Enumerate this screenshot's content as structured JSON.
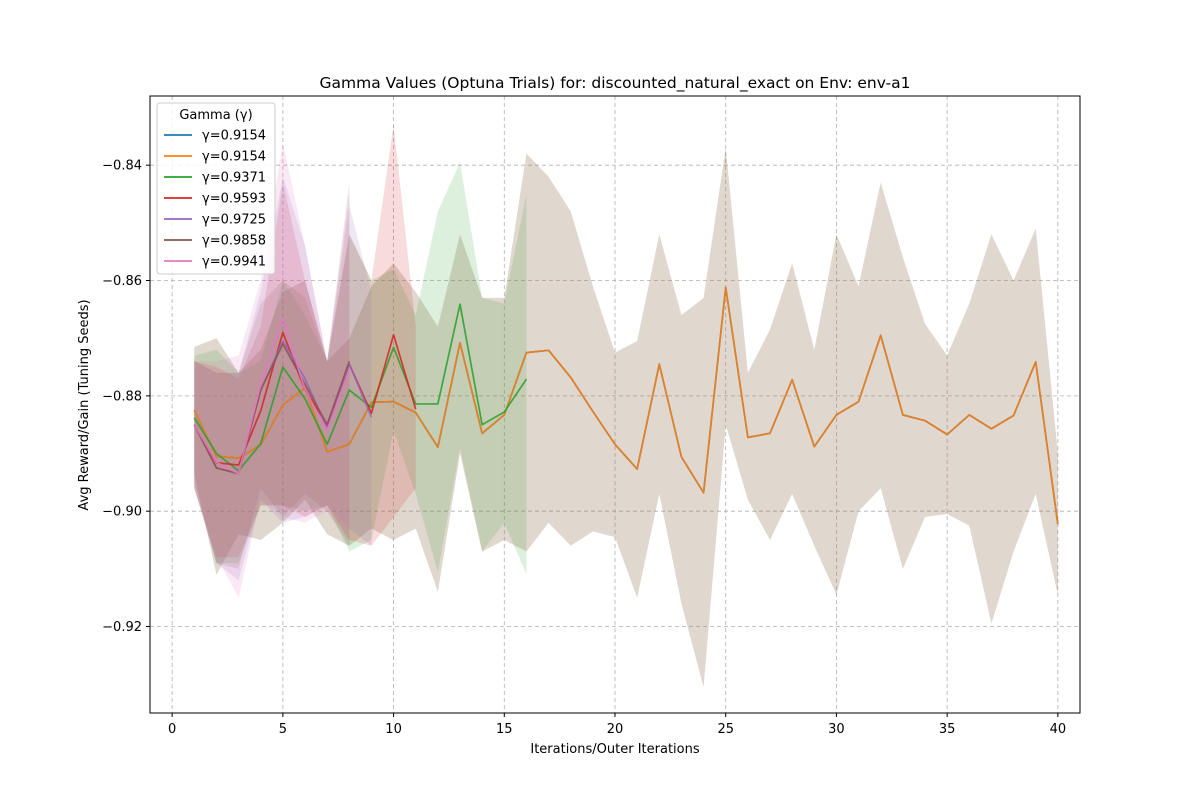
{
  "chart_data": {
    "type": "line",
    "title": "Gamma Values (Optuna Trials) for: discounted_natural_exact on Env: env-a1",
    "xlabel": "Iterations/Outer Iterations",
    "ylabel": "Avg Reward/Gain (Tuning Seeds)",
    "xlim": [
      -1,
      41
    ],
    "ylim": [
      -0.935,
      -0.828
    ],
    "xticks": [
      0,
      5,
      10,
      15,
      20,
      25,
      30,
      35,
      40
    ],
    "yticks": [
      -0.92,
      -0.9,
      -0.88,
      -0.86,
      -0.84
    ],
    "xtick_labels": [
      "0",
      "5",
      "10",
      "15",
      "20",
      "25",
      "30",
      "35",
      "40"
    ],
    "ytick_labels": [
      "−0.92",
      "−0.90",
      "−0.88",
      "−0.86",
      "−0.84"
    ],
    "grid": true,
    "legend": {
      "title": "Gamma (γ)",
      "placement": "top-left"
    },
    "series": [
      {
        "name": "γ=0.9154",
        "color": "#1f77b4",
        "x": [
          1,
          2,
          3,
          4,
          5,
          6,
          7,
          8,
          9,
          10,
          11,
          12,
          13,
          14,
          15,
          16,
          17,
          18,
          19,
          20,
          21,
          22,
          23,
          24,
          25,
          26,
          27,
          28,
          29,
          30,
          31,
          32,
          33,
          34,
          35,
          36,
          37,
          38,
          39,
          40
        ],
        "y": [
          -0.8825,
          -0.8905,
          -0.8908,
          -0.8885,
          -0.8816,
          -0.8786,
          -0.8897,
          -0.8884,
          -0.8811,
          -0.881,
          -0.8829,
          -0.8889,
          -0.8708,
          -0.8865,
          -0.8833,
          -0.8725,
          -0.8721,
          -0.8768,
          -0.8827,
          -0.8884,
          -0.8927,
          -0.8745,
          -0.8906,
          -0.8968,
          -0.8612,
          -0.8872,
          -0.8865,
          -0.8772,
          -0.8888,
          -0.8833,
          -0.881,
          -0.8695,
          -0.8833,
          -0.8843,
          -0.8867,
          -0.8833,
          -0.8857,
          -0.8834,
          -0.8741,
          -0.9023
        ],
        "upper": [
          -0.8715,
          -0.87,
          -0.876,
          -0.872,
          -0.862,
          -0.86,
          -0.874,
          -0.87,
          -0.861,
          -0.857,
          -0.862,
          -0.868,
          -0.852,
          -0.863,
          -0.863,
          -0.838,
          -0.842,
          -0.848,
          -0.861,
          -0.8725,
          -0.8705,
          -0.852,
          -0.866,
          -0.863,
          -0.837,
          -0.876,
          -0.8685,
          -0.857,
          -0.872,
          -0.852,
          -0.861,
          -0.843,
          -0.856,
          -0.8675,
          -0.873,
          -0.864,
          -0.852,
          -0.86,
          -0.851,
          -0.89
        ],
        "lower": [
          -0.8935,
          -0.911,
          -0.904,
          -0.905,
          -0.902,
          -0.898,
          -0.904,
          -0.906,
          -0.903,
          -0.905,
          -0.903,
          -0.914,
          -0.89,
          -0.907,
          -0.905,
          -0.907,
          -0.902,
          -0.906,
          -0.9035,
          -0.9045,
          -0.915,
          -0.897,
          -0.916,
          -0.9305,
          -0.885,
          -0.898,
          -0.905,
          -0.897,
          -0.906,
          -0.9145,
          -0.9,
          -0.896,
          -0.91,
          -0.901,
          -0.9005,
          -0.9025,
          -0.9195,
          -0.907,
          -0.897,
          -0.9145
        ]
      },
      {
        "name": "γ=0.9154",
        "color": "#ff7f0e",
        "x": [
          1,
          2,
          3,
          4,
          5,
          6,
          7,
          8,
          9,
          10,
          11,
          12,
          13,
          14,
          15,
          16,
          17,
          18,
          19,
          20,
          21,
          22,
          23,
          24,
          25,
          26,
          27,
          28,
          29,
          30,
          31,
          32,
          33,
          34,
          35,
          36,
          37,
          38,
          39,
          40
        ],
        "y": [
          -0.8825,
          -0.8905,
          -0.8908,
          -0.8885,
          -0.8816,
          -0.8786,
          -0.8897,
          -0.8884,
          -0.8811,
          -0.881,
          -0.8829,
          -0.8889,
          -0.8708,
          -0.8865,
          -0.8833,
          -0.8725,
          -0.8721,
          -0.8768,
          -0.8827,
          -0.8884,
          -0.8927,
          -0.8745,
          -0.8906,
          -0.8968,
          -0.8612,
          -0.8872,
          -0.8865,
          -0.8772,
          -0.8888,
          -0.8833,
          -0.881,
          -0.8695,
          -0.8833,
          -0.8843,
          -0.8867,
          -0.8833,
          -0.8857,
          -0.8834,
          -0.8741,
          -0.9023
        ],
        "upper": [
          -0.8715,
          -0.87,
          -0.876,
          -0.872,
          -0.862,
          -0.86,
          -0.874,
          -0.87,
          -0.861,
          -0.857,
          -0.862,
          -0.868,
          -0.852,
          -0.863,
          -0.863,
          -0.838,
          -0.842,
          -0.848,
          -0.861,
          -0.8725,
          -0.8705,
          -0.852,
          -0.866,
          -0.863,
          -0.837,
          -0.876,
          -0.8685,
          -0.857,
          -0.872,
          -0.852,
          -0.861,
          -0.843,
          -0.856,
          -0.8675,
          -0.873,
          -0.864,
          -0.852,
          -0.86,
          -0.851,
          -0.89
        ],
        "lower": [
          -0.8935,
          -0.911,
          -0.904,
          -0.905,
          -0.902,
          -0.898,
          -0.904,
          -0.906,
          -0.903,
          -0.905,
          -0.903,
          -0.914,
          -0.89,
          -0.907,
          -0.905,
          -0.907,
          -0.902,
          -0.906,
          -0.9035,
          -0.9045,
          -0.915,
          -0.897,
          -0.916,
          -0.9305,
          -0.885,
          -0.898,
          -0.905,
          -0.897,
          -0.906,
          -0.9145,
          -0.9,
          -0.896,
          -0.91,
          -0.901,
          -0.9005,
          -0.9025,
          -0.9195,
          -0.907,
          -0.897,
          -0.9145
        ]
      },
      {
        "name": "γ=0.9371",
        "color": "#2ca02c",
        "x": [
          1,
          2,
          3,
          4,
          5,
          6,
          7,
          8,
          9,
          10,
          11,
          12,
          13,
          14,
          15,
          16
        ],
        "y": [
          -0.8838,
          -0.89,
          -0.893,
          -0.8883,
          -0.875,
          -0.8805,
          -0.8884,
          -0.879,
          -0.882,
          -0.8716,
          -0.8814,
          -0.8814,
          -0.8641,
          -0.885,
          -0.8828,
          -0.8771
        ],
        "upper": [
          -0.873,
          -0.872,
          -0.876,
          -0.874,
          -0.86,
          -0.866,
          -0.874,
          -0.852,
          -0.86,
          -0.858,
          -0.866,
          -0.848,
          -0.8395,
          -0.863,
          -0.864,
          -0.845
        ],
        "lower": [
          -0.895,
          -0.909,
          -0.909,
          -0.899,
          -0.899,
          -0.9,
          -0.899,
          -0.907,
          -0.905,
          -0.886,
          -0.897,
          -0.9105,
          -0.889,
          -0.907,
          -0.902,
          -0.911
        ]
      },
      {
        "name": "γ=0.9593",
        "color": "#d62728",
        "x": [
          1,
          2,
          3,
          4,
          5,
          6,
          7,
          8,
          9,
          10,
          11
        ],
        "y": [
          -0.885,
          -0.8916,
          -0.892,
          -0.8826,
          -0.869,
          -0.879,
          -0.885,
          -0.8745,
          -0.883,
          -0.8694,
          -0.8823
        ],
        "upper": [
          -0.874,
          -0.875,
          -0.877,
          -0.868,
          -0.843,
          -0.86,
          -0.874,
          -0.852,
          -0.86,
          -0.833,
          -0.868
        ],
        "lower": [
          -0.896,
          -0.908,
          -0.908,
          -0.899,
          -0.899,
          -0.901,
          -0.899,
          -0.905,
          -0.906,
          -0.901,
          -0.896
        ]
      },
      {
        "name": "γ=0.9725",
        "color": "#9467bd",
        "x": [
          1,
          2,
          3,
          4,
          5,
          6,
          7,
          8,
          9
        ],
        "y": [
          -0.885,
          -0.8925,
          -0.8935,
          -0.879,
          -0.8705,
          -0.877,
          -0.8856,
          -0.8745,
          -0.8837
        ],
        "upper": [
          -0.874,
          -0.876,
          -0.876,
          -0.862,
          -0.842,
          -0.854,
          -0.874,
          -0.847,
          -0.862
        ],
        "lower": [
          -0.896,
          -0.909,
          -0.912,
          -0.898,
          -0.902,
          -0.901,
          -0.899,
          -0.903,
          -0.906
        ]
      },
      {
        "name": "γ=0.9858",
        "color": "#8c564b",
        "x": [
          1,
          2,
          3,
          4,
          5,
          6,
          7,
          8
        ],
        "y": [
          -0.885,
          -0.8925,
          -0.8935,
          -0.879,
          -0.871,
          -0.878,
          -0.885,
          -0.874
        ],
        "upper": [
          -0.874,
          -0.876,
          -0.876,
          -0.864,
          -0.86,
          -0.863,
          -0.874,
          -0.843
        ],
        "lower": [
          -0.896,
          -0.909,
          -0.91,
          -0.896,
          -0.901,
          -0.897,
          -0.9,
          -0.906
        ]
      },
      {
        "name": "γ=0.9941",
        "color": "#e377c2",
        "x": [
          1,
          2,
          3,
          4,
          5,
          6,
          7,
          8
        ],
        "y": [
          -0.885,
          -0.8915,
          -0.8935,
          -0.878,
          -0.8665,
          -0.879,
          -0.886,
          -0.8755
        ],
        "upper": [
          -0.874,
          -0.874,
          -0.873,
          -0.86,
          -0.836,
          -0.854,
          -0.874,
          -0.845
        ],
        "lower": [
          -0.896,
          -0.908,
          -0.915,
          -0.898,
          -0.901,
          -0.902,
          -0.9,
          -0.905
        ]
      }
    ]
  }
}
